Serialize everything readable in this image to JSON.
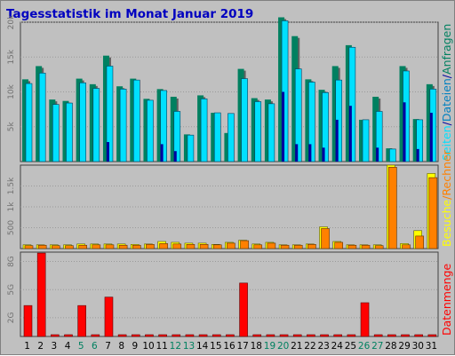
{
  "title": "Tagesstatistik im Monat Januar 2019",
  "side_labels": {
    "top": {
      "anfragen": "Anfragen",
      "sep1": "/",
      "dateien": "Dateien",
      "sep2": "/",
      "seiten": "Seiten"
    },
    "middle": {
      "rechner": "Rechner",
      "sep": "/",
      "besuche": "Besuche"
    },
    "bottom": "Datenmenge"
  },
  "colors": {
    "anfragen": "#008060",
    "dateien": "#00e0ff",
    "seiten": "#0000a0",
    "rechner": "#ff8000",
    "besuche": "#ffff00",
    "datenmenge": "#ff0000",
    "title": "#0000c0",
    "weekend": "#008060",
    "panel": "#c0c0c0"
  },
  "chart_data": [
    {
      "type": "bar",
      "panel": "top",
      "categories": [
        "1",
        "2",
        "3",
        "4",
        "5",
        "6",
        "7",
        "8",
        "9",
        "10",
        "11",
        "12",
        "13",
        "14",
        "15",
        "16",
        "17",
        "18",
        "19",
        "20",
        "21",
        "22",
        "23",
        "24",
        "25",
        "26",
        "27",
        "28",
        "29",
        "30",
        "31"
      ],
      "weekend_days": [
        "5",
        "6",
        "12",
        "13",
        "19",
        "20",
        "26",
        "27"
      ],
      "ylim": [
        0,
        20000
      ],
      "yticks": [
        {
          "v": 5000,
          "label": "5k"
        },
        {
          "v": 10000,
          "label": "10k"
        },
        {
          "v": 15000,
          "label": "15k"
        },
        {
          "v": 20000,
          "label": "20k"
        }
      ],
      "series": [
        {
          "name": "Anfragen",
          "values": [
            11800,
            13700,
            8900,
            8700,
            11900,
            11100,
            15200,
            10800,
            11900,
            9000,
            10400,
            9300,
            3900,
            9500,
            7000,
            4100,
            13300,
            9100,
            8900,
            20700,
            18000,
            11800,
            10300,
            13700,
            16700,
            6000,
            9300,
            1900,
            13700,
            6100,
            11100
          ]
        },
        {
          "name": "Dateien",
          "values": [
            11200,
            12700,
            8200,
            8400,
            11300,
            10500,
            13700,
            10400,
            11700,
            8800,
            10200,
            7200,
            3800,
            9000,
            7000,
            6900,
            11900,
            8600,
            8300,
            20200,
            13300,
            11400,
            9900,
            11700,
            16400,
            6000,
            7200,
            1800,
            13000,
            6000,
            10400
          ]
        },
        {
          "name": "Seiten",
          "values": [
            0,
            0,
            0,
            0,
            0,
            0,
            2800,
            0,
            0,
            0,
            2500,
            1500,
            0,
            0,
            0,
            0,
            0,
            0,
            0,
            10000,
            2500,
            2500,
            2000,
            6000,
            8000,
            0,
            2000,
            0,
            8500,
            1800,
            7000
          ]
        }
      ]
    },
    {
      "type": "bar",
      "panel": "middle",
      "categories": [
        "1",
        "2",
        "3",
        "4",
        "5",
        "6",
        "7",
        "8",
        "9",
        "10",
        "11",
        "12",
        "13",
        "14",
        "15",
        "16",
        "17",
        "18",
        "19",
        "20",
        "21",
        "22",
        "23",
        "24",
        "25",
        "26",
        "27",
        "28",
        "29",
        "30",
        "31"
      ],
      "ylim": [
        0,
        2000
      ],
      "yticks": [
        {
          "v": 500,
          "label": "500"
        },
        {
          "v": 1000,
          "label": "1k"
        },
        {
          "v": 1500,
          "label": "1.5k"
        }
      ],
      "series": [
        {
          "name": "Besuche",
          "values": [
            90,
            90,
            90,
            90,
            110,
            110,
            110,
            110,
            100,
            110,
            170,
            150,
            130,
            130,
            100,
            150,
            200,
            110,
            150,
            90,
            90,
            110,
            520,
            170,
            90,
            90,
            90,
            2000,
            120,
            430,
            1800
          ]
        },
        {
          "name": "Rechner",
          "values": [
            70,
            80,
            70,
            70,
            80,
            90,
            90,
            80,
            80,
            100,
            120,
            110,
            100,
            100,
            90,
            130,
            190,
            90,
            130,
            80,
            80,
            100,
            480,
            150,
            80,
            80,
            70,
            1950,
            90,
            300,
            1700
          ]
        }
      ]
    },
    {
      "type": "bar",
      "panel": "bottom",
      "categories": [
        "1",
        "2",
        "3",
        "4",
        "5",
        "6",
        "7",
        "8",
        "9",
        "10",
        "11",
        "12",
        "13",
        "14",
        "15",
        "16",
        "17",
        "18",
        "19",
        "20",
        "21",
        "22",
        "23",
        "24",
        "25",
        "26",
        "27",
        "28",
        "29",
        "30",
        "31"
      ],
      "ylim": [
        0,
        9.0
      ],
      "yticks": [
        {
          "v": 2,
          "label": "2G"
        },
        {
          "v": 5,
          "label": "5G"
        },
        {
          "v": 8,
          "label": "8G"
        }
      ],
      "series": [
        {
          "name": "Datenmenge",
          "values": [
            3.3,
            8.9,
            0.1,
            0.1,
            3.3,
            0.1,
            4.2,
            0.1,
            0.1,
            0.1,
            0.1,
            0.1,
            0.1,
            0.1,
            0.1,
            0.1,
            5.7,
            0.1,
            0.1,
            0.1,
            0.1,
            0.1,
            0.1,
            0.1,
            0.1,
            3.6,
            0.1,
            0.1,
            0.1,
            0.1,
            0.1
          ]
        }
      ]
    }
  ]
}
